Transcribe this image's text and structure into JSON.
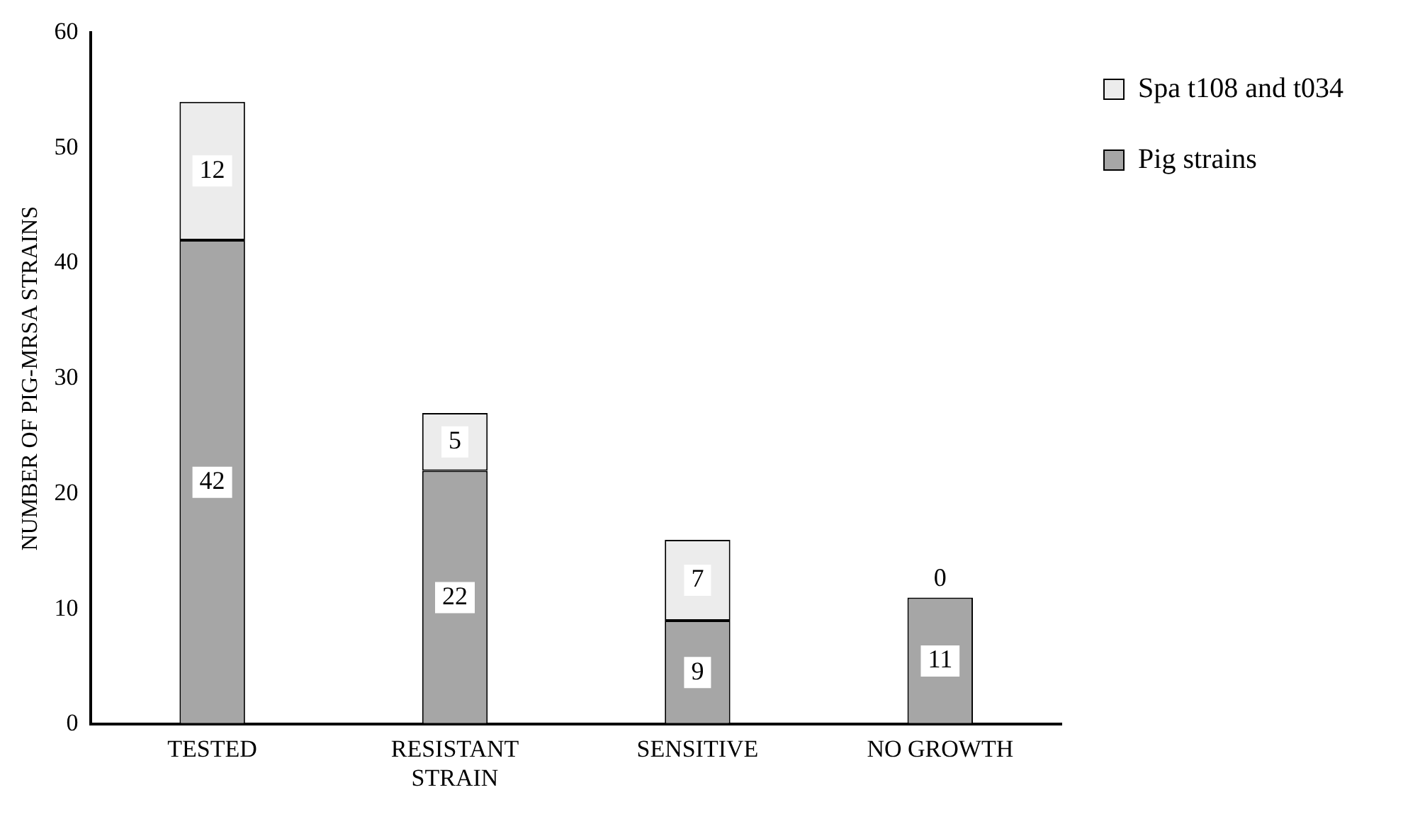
{
  "chart_data": {
    "type": "bar",
    "ylabel": "NUMBER OF PIG-MRSA STRAINS",
    "categories": [
      "TESTED",
      "RESISTANT STRAIN",
      "SENSITIVE",
      "NO GROWTH"
    ],
    "stacked": true,
    "series": [
      {
        "name": "Pig strains",
        "color": "#a6a6a6",
        "values": [
          42,
          22,
          9,
          11
        ]
      },
      {
        "name": "Spa t108 and t034",
        "color": "#ececec",
        "values": [
          12,
          5,
          7,
          0
        ]
      }
    ],
    "ylim": [
      0,
      60
    ],
    "yticks": [
      0,
      10,
      20,
      30,
      40,
      50,
      60
    ],
    "grid": false,
    "legend": "right",
    "data_labels": true
  }
}
